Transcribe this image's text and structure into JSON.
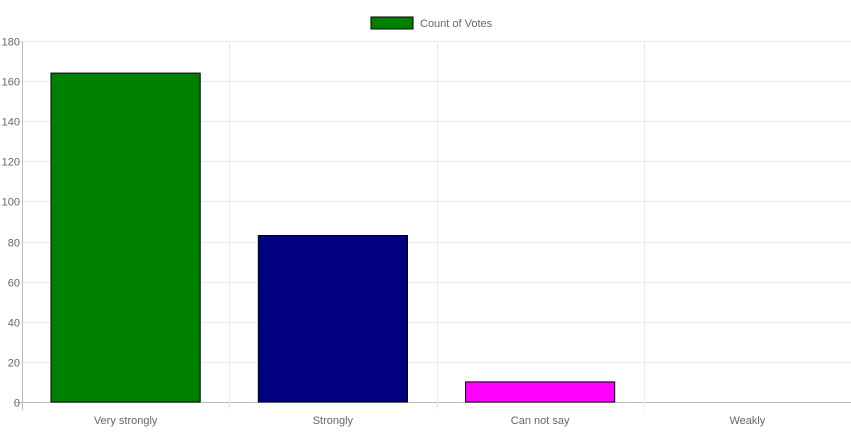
{
  "chart_data": {
    "type": "bar",
    "title": "",
    "xlabel": "",
    "ylabel": "",
    "categories": [
      "Very strongly",
      "Strongly",
      "Can not say",
      "Weakly"
    ],
    "series": [
      {
        "name": "Count of Votes",
        "values": [
          164,
          83,
          10,
          0
        ],
        "colors": [
          "#008000",
          "#000080",
          "#ff00ff",
          "#ffffff"
        ]
      }
    ],
    "ylim": [
      0,
      180
    ],
    "yticks": [
      0,
      20,
      40,
      60,
      80,
      100,
      120,
      140,
      160,
      180
    ],
    "legend_position": "top",
    "legend_swatch_color": "#008000",
    "grid": true,
    "grid_color": "#ebebeb",
    "bar_border_color": "#000000"
  }
}
